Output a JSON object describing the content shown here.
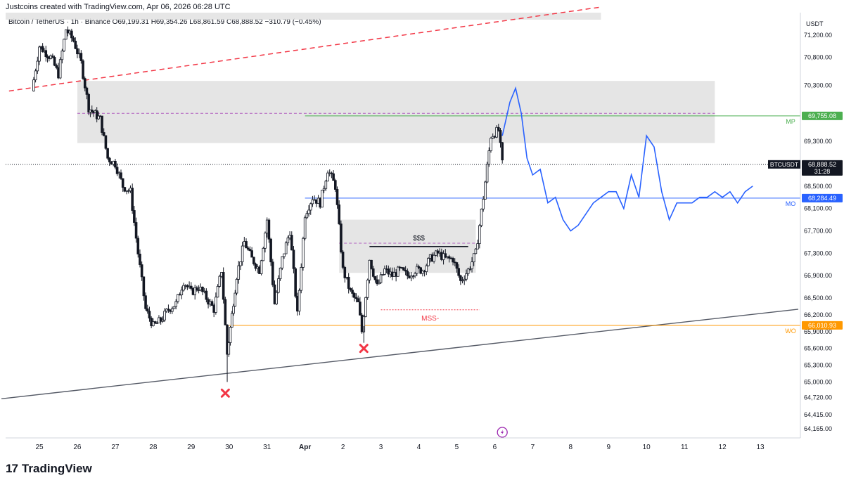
{
  "header": {
    "credit": "Justcoins created with TradingView.com, Apr 06, 2026 06:28 UTC",
    "ohlc": "Bitcoin / TetherUS · 1h · Binance  O69,199.31  H69,354.26  L68,861.59  C68,888.52  −310.79 (−0.45%)"
  },
  "footer": {
    "logo_text": "TradingView",
    "logo_mark": "17"
  },
  "colors": {
    "candle": "#131722",
    "projection": "#2962ff",
    "mp_line": "#4caf50",
    "mo_line": "#2962ff",
    "wo_line": "#ff9800",
    "dashed_red": "#f23645",
    "zone": "#e0e0e0",
    "trendline": "#555a66",
    "x_mark": "#f23645"
  },
  "chart_data": {
    "type": "candlestick",
    "symbol": "Bitcoin / TetherUS",
    "interval": "1h",
    "exchange": "Binance",
    "currency_label": "USDT",
    "ylim": [
      64000,
      71600
    ],
    "y_ticks": [
      "71,200.00",
      "70,800.00",
      "70,300.00",
      "69,300.00",
      "68,500.00",
      "68,100.00",
      "67,700.00",
      "67,300.00",
      "66,900.00",
      "66,500.00",
      "66,200.00",
      "65,900.00",
      "65,600.00",
      "65,300.00",
      "65,000.00",
      "64,720.00",
      "64,415.00",
      "64,165.00"
    ],
    "y_tick_values": [
      71200,
      70800,
      70300,
      69300,
      68500,
      68100,
      67700,
      67300,
      66900,
      66500,
      66200,
      65900,
      65600,
      65300,
      65000,
      64720,
      64415,
      64165
    ],
    "x_ticks": [
      "25",
      "26",
      "27",
      "28",
      "29",
      "30",
      "31",
      "Apr",
      "2",
      "3",
      "4",
      "5",
      "6",
      "7",
      "8",
      "9",
      "10",
      "11",
      "12",
      "13"
    ],
    "x_tick_days": [
      0,
      1,
      2,
      3,
      4,
      5,
      6,
      7,
      8,
      9,
      10,
      11,
      12,
      13,
      14,
      15,
      16,
      17,
      18,
      19
    ],
    "price_anchors": [
      [
        -0.2,
        70200
      ],
      [
        0.0,
        71000
      ],
      [
        0.3,
        70800
      ],
      [
        0.5,
        70500
      ],
      [
        0.7,
        71300
      ],
      [
        0.9,
        71100
      ],
      [
        1.1,
        70700
      ],
      [
        1.3,
        69900
      ],
      [
        1.6,
        69700
      ],
      [
        1.8,
        69000
      ],
      [
        2.0,
        68900
      ],
      [
        2.2,
        68500
      ],
      [
        2.4,
        68400
      ],
      [
        2.6,
        67300
      ],
      [
        2.8,
        66300
      ],
      [
        3.0,
        66000
      ],
      [
        3.2,
        66100
      ],
      [
        3.4,
        66300
      ],
      [
        3.6,
        66400
      ],
      [
        3.8,
        66800
      ],
      [
        4.0,
        66600
      ],
      [
        4.2,
        66700
      ],
      [
        4.4,
        66500
      ],
      [
        4.6,
        66300
      ],
      [
        4.8,
        67000
      ],
      [
        4.95,
        65500
      ],
      [
        5.2,
        66900
      ],
      [
        5.4,
        67500
      ],
      [
        5.6,
        67200
      ],
      [
        5.8,
        67000
      ],
      [
        6.0,
        67900
      ],
      [
        6.2,
        66400
      ],
      [
        6.4,
        67200
      ],
      [
        6.6,
        67700
      ],
      [
        6.8,
        66200
      ],
      [
        7.0,
        68000
      ],
      [
        7.2,
        68300
      ],
      [
        7.4,
        68200
      ],
      [
        7.6,
        68800
      ],
      [
        7.8,
        68500
      ],
      [
        8.0,
        67000
      ],
      [
        8.2,
        66600
      ],
      [
        8.4,
        66400
      ],
      [
        8.5,
        65900
      ],
      [
        8.7,
        67200
      ],
      [
        8.9,
        66700
      ],
      [
        9.1,
        67000
      ],
      [
        9.3,
        66900
      ],
      [
        9.5,
        67000
      ],
      [
        9.7,
        66900
      ],
      [
        9.9,
        67000
      ],
      [
        10.1,
        67000
      ],
      [
        10.3,
        67200
      ],
      [
        10.5,
        67300
      ],
      [
        10.7,
        67200
      ],
      [
        10.9,
        67200
      ],
      [
        11.1,
        66800
      ],
      [
        11.3,
        67000
      ],
      [
        11.5,
        67300
      ],
      [
        11.7,
        68300
      ],
      [
        11.9,
        69400
      ],
      [
        12.1,
        69500
      ],
      [
        12.2,
        68900
      ]
    ],
    "projection": [
      [
        12.2,
        69400
      ],
      [
        12.4,
        70000
      ],
      [
        12.55,
        70250
      ],
      [
        12.7,
        69800
      ],
      [
        12.85,
        69000
      ],
      [
        13.0,
        68700
      ],
      [
        13.2,
        68800
      ],
      [
        13.4,
        68200
      ],
      [
        13.6,
        68300
      ],
      [
        13.8,
        67900
      ],
      [
        14.0,
        67700
      ],
      [
        14.2,
        67800
      ],
      [
        14.4,
        68000
      ],
      [
        14.6,
        68200
      ],
      [
        14.8,
        68300
      ],
      [
        15.0,
        68400
      ],
      [
        15.2,
        68400
      ],
      [
        15.4,
        68100
      ],
      [
        15.6,
        68700
      ],
      [
        15.8,
        68300
      ],
      [
        16.0,
        69400
      ],
      [
        16.2,
        69200
      ],
      [
        16.4,
        68400
      ],
      [
        16.6,
        67900
      ],
      [
        16.8,
        68200
      ],
      [
        17.0,
        68200
      ],
      [
        17.2,
        68200
      ],
      [
        17.4,
        68300
      ],
      [
        17.6,
        68300
      ],
      [
        17.8,
        68400
      ],
      [
        18.0,
        68300
      ],
      [
        18.2,
        68400
      ],
      [
        18.4,
        68200
      ],
      [
        18.6,
        68400
      ],
      [
        18.8,
        68500
      ]
    ],
    "levels": [
      {
        "label": "MP",
        "price": 69755.08,
        "price_label": "69,755.08",
        "start_day": 7.0,
        "color_key": "mp_line"
      },
      {
        "label": "MO",
        "price": 68284.49,
        "price_label": "68,284.49",
        "start_day": 7.0,
        "color_key": "mo_line"
      },
      {
        "label": "WO",
        "price": 66010.93,
        "price_label": "66,010.93",
        "start_day": 5.0,
        "color_key": "wo_line"
      }
    ],
    "current_price": {
      "label": "BTCUSDT",
      "price": 68888.52,
      "price_label": "68,888.52",
      "countdown": "31:28"
    },
    "zones": [
      {
        "x0": 1.0,
        "x1": 17.8,
        "y0": 69270,
        "y1": 70380
      },
      {
        "x0": 7.9,
        "x1": 11.5,
        "y0": 66950,
        "y1": 67900
      }
    ],
    "zone_midline": {
      "x0": 1.0,
      "x1": 17.8,
      "price": 69800
    },
    "liquidity_midline": {
      "x0": 7.9,
      "x1": 11.5,
      "price": 67480
    },
    "annotations": [
      {
        "text": "$$$",
        "day": 10.0,
        "price": 67480,
        "line_x0": 8.7,
        "line_x1": 11.3,
        "line_price": 67420
      },
      {
        "text": "MSS-",
        "day": 10.3,
        "price": 66120,
        "line_x0": 9.0,
        "line_x1": 11.6,
        "line_price": 66290
      }
    ],
    "x_marks": [
      {
        "day": 4.9,
        "price": 64800
      },
      {
        "day": 8.55,
        "price": 65600
      }
    ],
    "trendlines": [
      {
        "x0": -1.0,
        "p0": 64700,
        "x1": 20.0,
        "p1": 66300,
        "style": "solid"
      },
      {
        "x0": -0.8,
        "p0": 70200,
        "x1": 14.8,
        "p1": 71700,
        "style": "dashed"
      }
    ],
    "lightning_icon_day": 12.2
  }
}
